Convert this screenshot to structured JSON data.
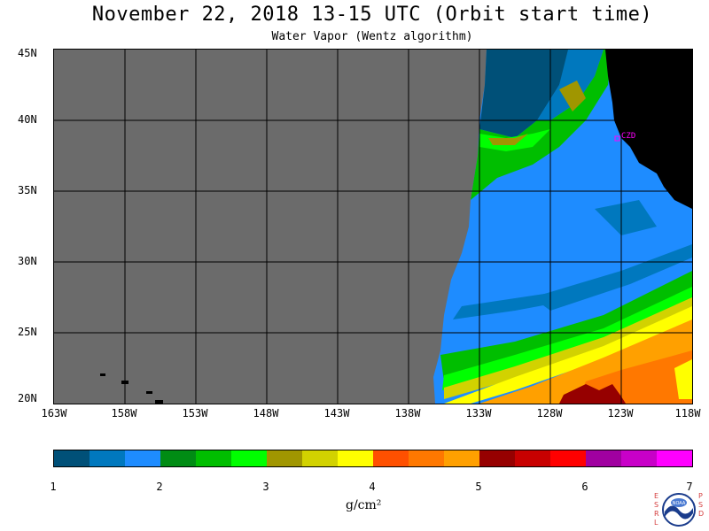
{
  "title": "November 22, 2018  13-15 UTC  (Orbit start time)",
  "subtitle": "Water Vapor (Wentz algorithm)",
  "map": {
    "latitude_labels": [
      "45N",
      "40N",
      "35N",
      "30N",
      "25N",
      "20N"
    ],
    "longitude_labels": [
      "163W",
      "158W",
      "153W",
      "148W",
      "143W",
      "138W",
      "133W",
      "128W",
      "123W",
      "118W"
    ],
    "station_label": "CZD",
    "colors": {
      "no_data": "#6b6b6b",
      "land": "#000000",
      "grid": "#000000",
      "station": "#ff00ff"
    }
  },
  "colorbar": {
    "ticks": [
      "1",
      "2",
      "3",
      "4",
      "5",
      "6",
      "7"
    ],
    "unit_label": "g/cm²",
    "colors": [
      "#005078",
      "#0078be",
      "#1e8cff",
      "#008c14",
      "#00be00",
      "#00ff00",
      "#a09600",
      "#d2d200",
      "#ffff00",
      "#ff5000",
      "#ff7800",
      "#ffa000",
      "#960000",
      "#c80000",
      "#ff0000",
      "#a000a0",
      "#c800c8",
      "#ff00ff"
    ]
  },
  "logo": {
    "left_letters": "ESRL",
    "right_letters": "PSD",
    "center_text": "NOAA"
  }
}
